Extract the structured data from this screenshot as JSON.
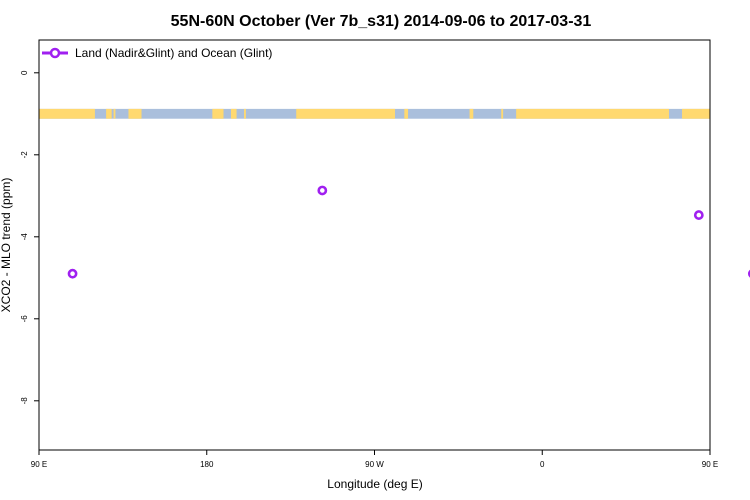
{
  "chart_data": {
    "type": "scatter",
    "title": "55N-60N October (Ver 7b_s31)   2014-09-06 to 2017-03-31",
    "xlabel": "Longitude (deg E)",
    "ylabel": "XCO2 - MLO trend (ppm)",
    "xlim": [
      90,
      450
    ],
    "ylim": [
      -9.2,
      0.8
    ],
    "x_tick_values": [
      90,
      180,
      270,
      360,
      450
    ],
    "x_tick_labels": [
      "90 E",
      "180",
      "90 W",
      "0",
      "90 E",
      "180"
    ],
    "x_tick_positions": [
      90,
      180,
      270,
      360,
      450,
      540
    ],
    "y_ticks": [
      0,
      -2,
      -4,
      -6,
      -8
    ],
    "y_tick_labels": [
      "0",
      "-2",
      "-4",
      "-6",
      "-8"
    ],
    "grid": false,
    "legend_position": "top-left",
    "series": [
      {
        "name": "Land (Nadir&Glint) and Ocean (Glint)",
        "color": "#a020f0",
        "marker": "open-circle",
        "x": [
          108,
          242,
          444,
          473
        ],
        "y": [
          -4.9,
          -2.87,
          -3.47,
          -4.9
        ]
      }
    ],
    "land_band": {
      "ocean_color": "#aabfdc",
      "land_color": "#ffd970",
      "y_range": [
        -1.12,
        -0.88
      ]
    }
  }
}
